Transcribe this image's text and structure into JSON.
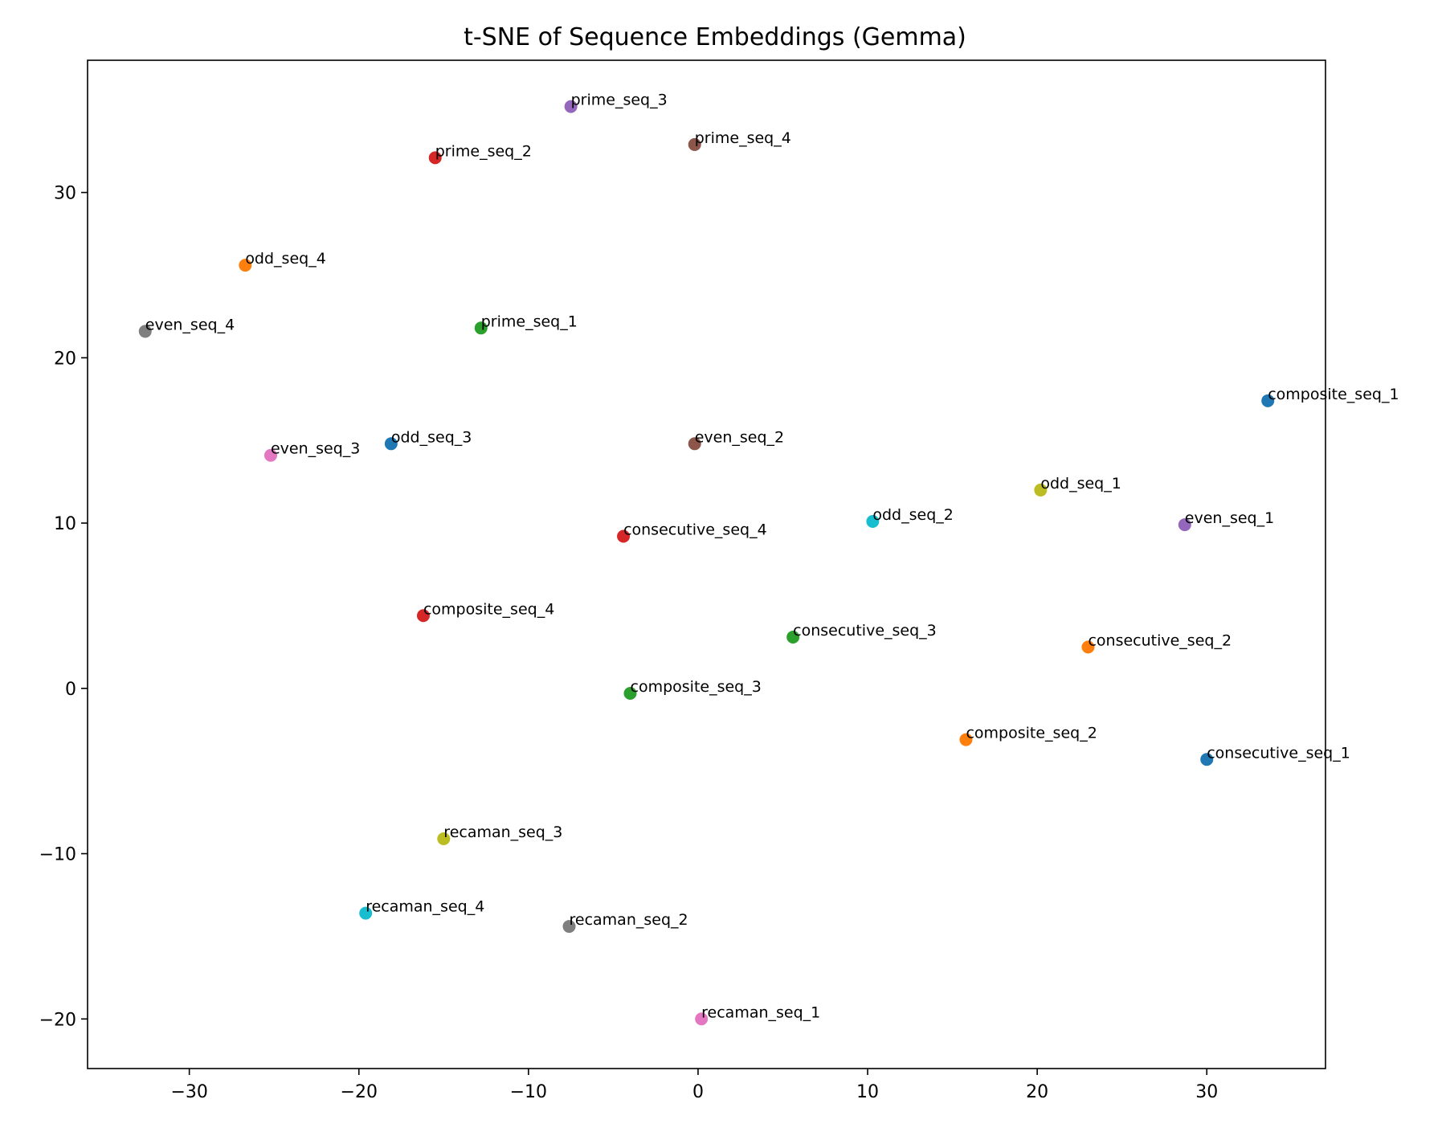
{
  "chart_data": {
    "type": "scatter",
    "title": "t-SNE of Sequence Embeddings (Gemma)",
    "xlabel": "",
    "ylabel": "",
    "xlim": [
      -36,
      37
    ],
    "ylim": [
      -23,
      38
    ],
    "xticks": [
      -30,
      -20,
      -10,
      0,
      10,
      20,
      30
    ],
    "yticks": [
      -20,
      -10,
      0,
      10,
      20,
      30
    ],
    "tick_labels_x": [
      "−30",
      "−20",
      "−10",
      "0",
      "10",
      "20",
      "30"
    ],
    "tick_labels_y": [
      "−20",
      "−10",
      "0",
      "10",
      "20",
      "30"
    ],
    "grid": false,
    "legend": "none",
    "points": [
      {
        "label": "prime_seq_3",
        "x": -7.5,
        "y": 35.2,
        "color": "#9467bd"
      },
      {
        "label": "prime_seq_2",
        "x": -15.5,
        "y": 32.1,
        "color": "#d62728"
      },
      {
        "label": "prime_seq_4",
        "x": -0.2,
        "y": 32.9,
        "color": "#8c564b"
      },
      {
        "label": "odd_seq_4",
        "x": -26.7,
        "y": 25.6,
        "color": "#ff7f0e"
      },
      {
        "label": "even_seq_4",
        "x": -32.6,
        "y": 21.6,
        "color": "#7f7f7f"
      },
      {
        "label": "prime_seq_1",
        "x": -12.8,
        "y": 21.8,
        "color": "#2ca02c"
      },
      {
        "label": "composite_seq_1",
        "x": 33.6,
        "y": 17.4,
        "color": "#1f77b4"
      },
      {
        "label": "even_seq_3",
        "x": -25.2,
        "y": 14.1,
        "color": "#e377c2"
      },
      {
        "label": "odd_seq_3",
        "x": -18.1,
        "y": 14.8,
        "color": "#1f77b4"
      },
      {
        "label": "even_seq_2",
        "x": -0.2,
        "y": 14.8,
        "color": "#8c564b"
      },
      {
        "label": "odd_seq_1",
        "x": 20.2,
        "y": 12.0,
        "color": "#bcbd22"
      },
      {
        "label": "odd_seq_2",
        "x": 10.3,
        "y": 10.1,
        "color": "#17becf"
      },
      {
        "label": "even_seq_1",
        "x": 28.7,
        "y": 9.9,
        "color": "#9467bd"
      },
      {
        "label": "consecutive_seq_4",
        "x": -4.4,
        "y": 9.2,
        "color": "#d62728"
      },
      {
        "label": "composite_seq_4",
        "x": -16.2,
        "y": 4.4,
        "color": "#d62728"
      },
      {
        "label": "consecutive_seq_3",
        "x": 5.6,
        "y": 3.1,
        "color": "#2ca02c"
      },
      {
        "label": "consecutive_seq_2",
        "x": 23.0,
        "y": 2.5,
        "color": "#ff7f0e"
      },
      {
        "label": "composite_seq_3",
        "x": -4.0,
        "y": -0.3,
        "color": "#2ca02c"
      },
      {
        "label": "composite_seq_2",
        "x": 15.8,
        "y": -3.1,
        "color": "#ff7f0e"
      },
      {
        "label": "consecutive_seq_1",
        "x": 30.0,
        "y": -4.3,
        "color": "#1f77b4"
      },
      {
        "label": "recaman_seq_3",
        "x": -15.0,
        "y": -9.1,
        "color": "#bcbd22"
      },
      {
        "label": "recaman_seq_4",
        "x": -19.6,
        "y": -13.6,
        "color": "#17becf"
      },
      {
        "label": "recaman_seq_2",
        "x": -7.6,
        "y": -14.4,
        "color": "#7f7f7f"
      },
      {
        "label": "recaman_seq_1",
        "x": 0.2,
        "y": -20.0,
        "color": "#e377c2"
      }
    ]
  }
}
